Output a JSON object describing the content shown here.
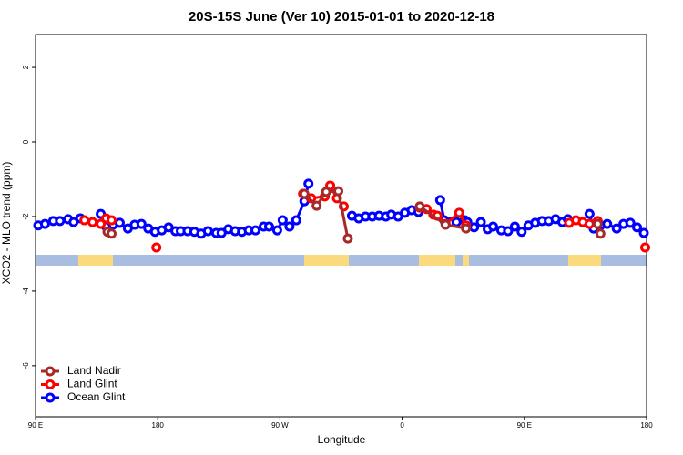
{
  "chart_data": {
    "type": "line",
    "title": "20S-15S June (Ver 10)   2015-01-01 to 2020-12-18",
    "x_label": "Longitude",
    "y_label": "XCO2 - MLO trend (ppm)",
    "xlim": [
      90,
      540
    ],
    "xticks": [
      {
        "value": 90,
        "label": "90 E"
      },
      {
        "value": 180,
        "label": "180"
      },
      {
        "value": 270,
        "label": "90 W"
      },
      {
        "value": 360,
        "label": "0"
      },
      {
        "value": 450,
        "label": "90 E"
      },
      {
        "value": 540,
        "label": "180"
      }
    ],
    "ylim": [
      -7.37,
      2.88
    ],
    "yticks": [
      -6,
      -4,
      -2,
      0,
      2
    ],
    "legend": "bottom-left",
    "series": [
      {
        "name": "Land Nadir",
        "color": "#a52a2a",
        "x": [
          143,
          146,
          null,
          288,
          297,
          304,
          313,
          320,
          null,
          373,
          392,
          407,
          null,
          504,
          506
        ],
        "values": [
          -2.41,
          -2.46,
          null,
          -1.39,
          -1.71,
          -1.34,
          -1.32,
          -2.59,
          null,
          -1.73,
          -2.22,
          -2.32,
          null,
          -2.2,
          -2.46
        ]
      },
      {
        "name": "Land Glint",
        "color": "#ff0000",
        "x": [
          126,
          132,
          138,
          142,
          146,
          null,
          179,
          null,
          287,
          293,
          303,
          307,
          312,
          317,
          null,
          373,
          378,
          383,
          386,
          392,
          402,
          407,
          null,
          483,
          488,
          493,
          498,
          504,
          null,
          539
        ],
        "values": [
          -2.1,
          -2.15,
          -2.2,
          -2.05,
          -2.1,
          null,
          -2.83,
          null,
          -1.39,
          -1.51,
          -1.46,
          -1.17,
          -1.51,
          -1.73,
          null,
          -1.76,
          -1.8,
          -1.95,
          -1.98,
          -2.2,
          -1.9,
          -2.24,
          null,
          -2.17,
          -2.1,
          -2.15,
          -2.2,
          -2.12,
          null,
          -2.83
        ]
      },
      {
        "name": "Ocean Glint",
        "color": "#0000ff",
        "x": [
          92,
          97,
          103,
          108,
          114,
          118,
          123,
          null,
          138,
          142,
          147,
          152,
          158,
          163,
          168,
          173,
          178,
          183,
          188,
          193,
          197,
          202,
          207,
          212,
          217,
          223,
          227,
          232,
          237,
          242,
          247,
          252,
          258,
          262,
          268,
          272,
          277,
          282,
          288,
          291,
          null,
          323,
          328,
          333,
          338,
          343,
          348,
          352,
          357,
          362,
          367,
          372,
          null,
          388,
          391,
          396,
          400,
          406,
          408,
          413,
          418,
          423,
          427,
          433,
          438,
          443,
          448,
          453,
          458,
          463,
          468,
          473,
          478,
          482,
          null,
          498,
          501,
          506,
          511,
          518,
          523,
          528,
          533,
          538
        ],
        "values": [
          -2.24,
          -2.2,
          -2.12,
          -2.12,
          -2.07,
          -2.15,
          -2.05,
          null,
          -1.93,
          -2.27,
          -2.22,
          -2.17,
          -2.32,
          -2.22,
          -2.2,
          -2.32,
          -2.41,
          -2.37,
          -2.29,
          -2.39,
          -2.39,
          -2.39,
          -2.41,
          -2.46,
          -2.39,
          -2.44,
          -2.44,
          -2.34,
          -2.39,
          -2.41,
          -2.37,
          -2.37,
          -2.27,
          -2.27,
          -2.37,
          -2.1,
          -2.27,
          -2.1,
          -1.59,
          -1.12,
          null,
          -1.98,
          -2.05,
          -2.0,
          -2.0,
          -1.98,
          -2.0,
          -1.95,
          -2.0,
          -1.9,
          -1.83,
          -1.88,
          null,
          -1.56,
          -2.1,
          -2.15,
          -2.15,
          -2.1,
          -2.15,
          -2.29,
          -2.15,
          -2.34,
          -2.27,
          -2.37,
          -2.39,
          -2.27,
          -2.41,
          -2.24,
          -2.17,
          -2.12,
          -2.12,
          -2.07,
          -2.15,
          -2.07,
          null,
          -1.93,
          -2.32,
          -2.24,
          -2.2,
          -2.32,
          -2.2,
          -2.17,
          -2.29,
          -2.44
        ]
      }
    ]
  }
}
